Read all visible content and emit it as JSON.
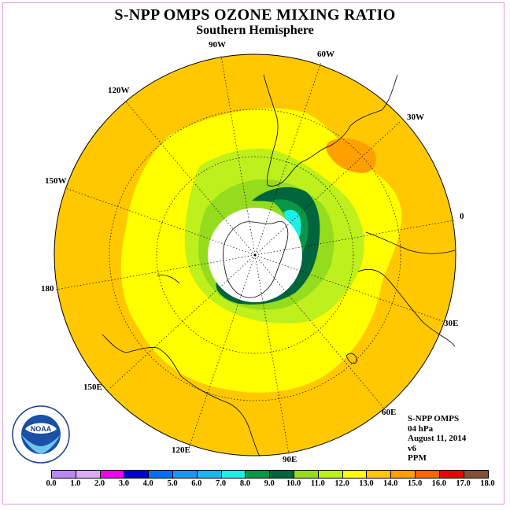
{
  "title": "S-NPP OMPS OZONE MIXING RATIO",
  "subtitle": "Southern Hemisphere",
  "longitude_labels": {
    "w90": "90W",
    "w60": "60W",
    "w30": "30W",
    "e0": "0",
    "e30": "30E",
    "e60": "60E",
    "e90": "90E",
    "e120": "120E",
    "e150": "150E",
    "d180": "180",
    "w150": "150W",
    "w120": "120W"
  },
  "info": {
    "instrument": "S-NPP OMPS",
    "level": "04 hPa",
    "date": "August 11, 2014",
    "version": "v6",
    "units": "PPM"
  },
  "logo": {
    "text": "NOAA"
  },
  "colorbar": {
    "ticks": [
      "0.0",
      "1.0",
      "2.0",
      "3.0",
      "4.0",
      "5.0",
      "6.0",
      "7.0",
      "8.0",
      "9.0",
      "10.0",
      "11.0",
      "12.0",
      "13.0",
      "14.0",
      "15.0",
      "16.0",
      "17.0",
      "18.0"
    ],
    "colors": [
      "#b98af0",
      "#dcaaf2",
      "#f000f0",
      "#0000dc",
      "#0a6ef5",
      "#1e96f0",
      "#1eb4f0",
      "#19f0e6",
      "#0a9646",
      "#00643c",
      "#96dc1e",
      "#bef01e",
      "#ffff00",
      "#ffc800",
      "#ffa000",
      "#ff6400",
      "#f00000",
      "#825032"
    ]
  },
  "map_colors": {
    "ocean_background": "#ffc800",
    "band_12_13": "#ffff00",
    "band_11_12": "#bef01e",
    "band_10_11": "#96dc1e",
    "band_9_10": "#00643c",
    "band_8_9": "#0a9646",
    "band_7_8": "#19f0e6",
    "band_14_15": "#ffa000",
    "polar_mask": "#ffffff"
  }
}
